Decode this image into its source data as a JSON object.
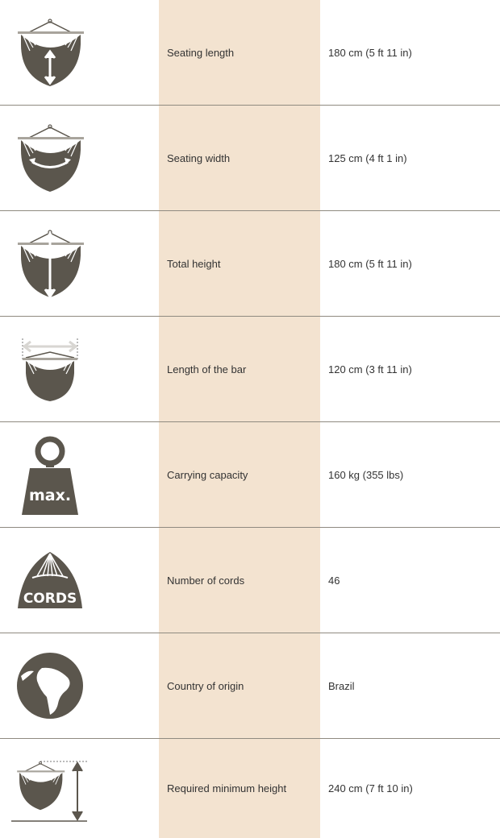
{
  "colors": {
    "icon": "#5b564d",
    "label_column": "#f3e3d0",
    "divider": "#8f8a80"
  },
  "rows": [
    {
      "icon": "hammock-seating-length-icon",
      "label": "Seating length",
      "value": "180 cm (5 ft 11 in)"
    },
    {
      "icon": "hammock-seating-width-icon",
      "label": "Seating width",
      "value": "125 cm (4 ft 1 in)"
    },
    {
      "icon": "hammock-total-height-icon",
      "label": "Total height",
      "value": "180 cm (5 ft 11 in)"
    },
    {
      "icon": "hammock-bar-length-icon",
      "label": "Length of the bar",
      "value": "120 cm (3 ft 11 in)"
    },
    {
      "icon": "weight-max-icon",
      "label": "Carrying capacity",
      "value": "160 kg (355 lbs)",
      "icon_text": "max."
    },
    {
      "icon": "cords-icon",
      "label": "Number of cords",
      "value": "46",
      "icon_text": "CORDS"
    },
    {
      "icon": "globe-icon",
      "label": "Country of origin",
      "value": "Brazil"
    },
    {
      "icon": "hammock-minimum-height-icon",
      "label": "Required minimum height",
      "value": "240 cm (7 ft 10 in)"
    }
  ]
}
